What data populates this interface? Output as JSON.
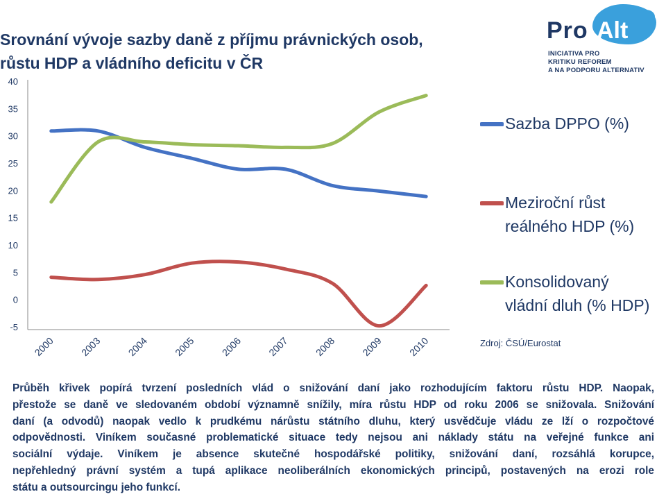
{
  "title": {
    "line1": "Srovnání vývoje sazby daně z příjmu právnických osob,",
    "line2": "růstu HDP a vládního deficitu v ČR"
  },
  "logo": {
    "word_pro": "Pro",
    "word_alt": "Alt",
    "line1": "INICIATIVA PRO",
    "line2": "KRITIKU REFOREM",
    "line3": "A NA PODPORU ALTERNATIV"
  },
  "legend": {
    "item1": {
      "line1": "Sazba DPPO (%)",
      "color": "#4472c4"
    },
    "item2": {
      "line1": "Meziroční růst",
      "line2": "reálného HDP (%)",
      "color": "#c0504d"
    },
    "item3": {
      "line1": "Konsolidovaný",
      "line2": "vládní dluh (% HDP)",
      "color": "#9bbb59"
    }
  },
  "source": "Zdroj: ČSÚ/Eurostat",
  "chart_data": {
    "type": "line",
    "categories": [
      "2000",
      "2003",
      "2004",
      "2005",
      "2006",
      "2007",
      "2008",
      "2009",
      "2010"
    ],
    "ylim": [
      -5,
      40
    ],
    "yticks": [
      "-5",
      "0",
      "5",
      "10",
      "15",
      "20",
      "25",
      "30",
      "35",
      "40"
    ],
    "grid": false,
    "legend_position": "right",
    "series": [
      {
        "name": "Sazba DPPO (%)",
        "color": "#4472c4",
        "values": [
          31,
          31,
          28,
          26,
          24,
          24,
          21,
          20,
          19
        ]
      },
      {
        "name": "Meziroční růst reálného HDP (%)",
        "color": "#c0504d",
        "values": [
          4.2,
          3.8,
          4.7,
          6.8,
          7.0,
          5.7,
          3.1,
          -4.7,
          2.7
        ]
      },
      {
        "name": "Konsolidovaný vládní dluh (% HDP)",
        "color": "#9bbb59",
        "values": [
          18,
          29,
          29,
          28.5,
          28.3,
          28,
          28.7,
          34.5,
          37.5
        ]
      }
    ]
  },
  "paragraph": {
    "lines": [
      "Průběh křivek popírá tvrzení posledních vlád o snižování daní jako rozhodujícím faktoru růstu HDP. Naopak,",
      "přestože se daně ve sledovaném období významně snížily, míra růstu HDP od roku 2006 se snižovala. Snižování",
      "daní (a odvodů) naopak vedlo k prudkému nárůstu státního dluhu, který usvědčuje vládu ze lží o rozpočtové",
      "odpovědnosti. Viníkem současné problematické situace tedy nejsou ani náklady státu na veřejné funkce ani",
      "sociální výdaje. Viníkem je absence skutečné hospodářské politiky, snižování daní, rozsáhlá korupce,",
      "nepřehledný právní systém a tupá aplikace neoliberálních ekonomických principů, postavených na erozi role",
      "státu a outsourcingu jeho funkcí."
    ]
  }
}
